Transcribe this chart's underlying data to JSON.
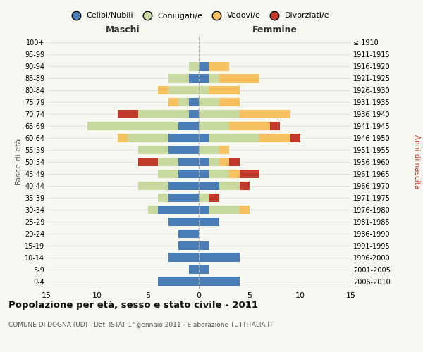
{
  "age_groups_bottom_to_top": [
    "0-4",
    "5-9",
    "10-14",
    "15-19",
    "20-24",
    "25-29",
    "30-34",
    "35-39",
    "40-44",
    "45-49",
    "50-54",
    "55-59",
    "60-64",
    "65-69",
    "70-74",
    "75-79",
    "80-84",
    "85-89",
    "90-94",
    "95-99",
    "100+"
  ],
  "birth_years_bottom_to_top": [
    "2006-2010",
    "2001-2005",
    "1996-2000",
    "1991-1995",
    "1986-1990",
    "1981-1985",
    "1976-1980",
    "1971-1975",
    "1966-1970",
    "1961-1965",
    "1956-1960",
    "1951-1955",
    "1946-1950",
    "1941-1945",
    "1936-1940",
    "1931-1935",
    "1926-1930",
    "1921-1925",
    "1916-1920",
    "1911-1915",
    "≤ 1910"
  ],
  "maschi": {
    "celibi": [
      4,
      1,
      3,
      2,
      2,
      3,
      4,
      3,
      3,
      2,
      2,
      3,
      3,
      2,
      1,
      1,
      0,
      1,
      0,
      0,
      0
    ],
    "coniugati": [
      0,
      0,
      0,
      0,
      0,
      0,
      1,
      1,
      3,
      2,
      2,
      3,
      4,
      9,
      5,
      1,
      3,
      2,
      1,
      0,
      0
    ],
    "vedovi": [
      0,
      0,
      0,
      0,
      0,
      0,
      0,
      0,
      0,
      0,
      0,
      0,
      1,
      0,
      0,
      1,
      1,
      0,
      0,
      0,
      0
    ],
    "divorziati": [
      0,
      0,
      0,
      0,
      0,
      0,
      0,
      0,
      0,
      0,
      2,
      0,
      0,
      0,
      2,
      0,
      0,
      0,
      0,
      0,
      0
    ]
  },
  "femmine": {
    "nubili": [
      4,
      1,
      4,
      1,
      0,
      2,
      1,
      0,
      2,
      1,
      1,
      0,
      1,
      0,
      0,
      0,
      0,
      1,
      1,
      0,
      0
    ],
    "coniugate": [
      0,
      0,
      0,
      0,
      0,
      0,
      3,
      1,
      2,
      2,
      1,
      2,
      5,
      3,
      4,
      2,
      1,
      1,
      0,
      0,
      0
    ],
    "vedove": [
      0,
      0,
      0,
      0,
      0,
      0,
      1,
      0,
      0,
      1,
      1,
      1,
      3,
      4,
      5,
      2,
      3,
      4,
      2,
      0,
      0
    ],
    "divorziate": [
      0,
      0,
      0,
      0,
      0,
      0,
      0,
      1,
      1,
      2,
      1,
      0,
      1,
      1,
      0,
      0,
      0,
      0,
      0,
      0,
      0
    ]
  },
  "colors": {
    "celibi_nubili": "#4a7db5",
    "coniugati_e": "#c8d9a0",
    "vedovi_e": "#f5c060",
    "divorziati_e": "#c0392b"
  },
  "xlim": 15,
  "title": "Popolazione per età, sesso e stato civile - 2011",
  "subtitle": "COMUNE DI DOGNA (UD) - Dati ISTAT 1° gennaio 2011 - Elaborazione TUTTITALIA.IT",
  "ylabel_left": "Fasce di età",
  "ylabel_right": "Anni di nascita",
  "xlabel_left": "Maschi",
  "xlabel_right": "Femmine",
  "legend_labels": [
    "Celibi/Nubili",
    "Coniugati/e",
    "Vedovi/e",
    "Divorziati/e"
  ],
  "background_color": "#f7f7f2"
}
